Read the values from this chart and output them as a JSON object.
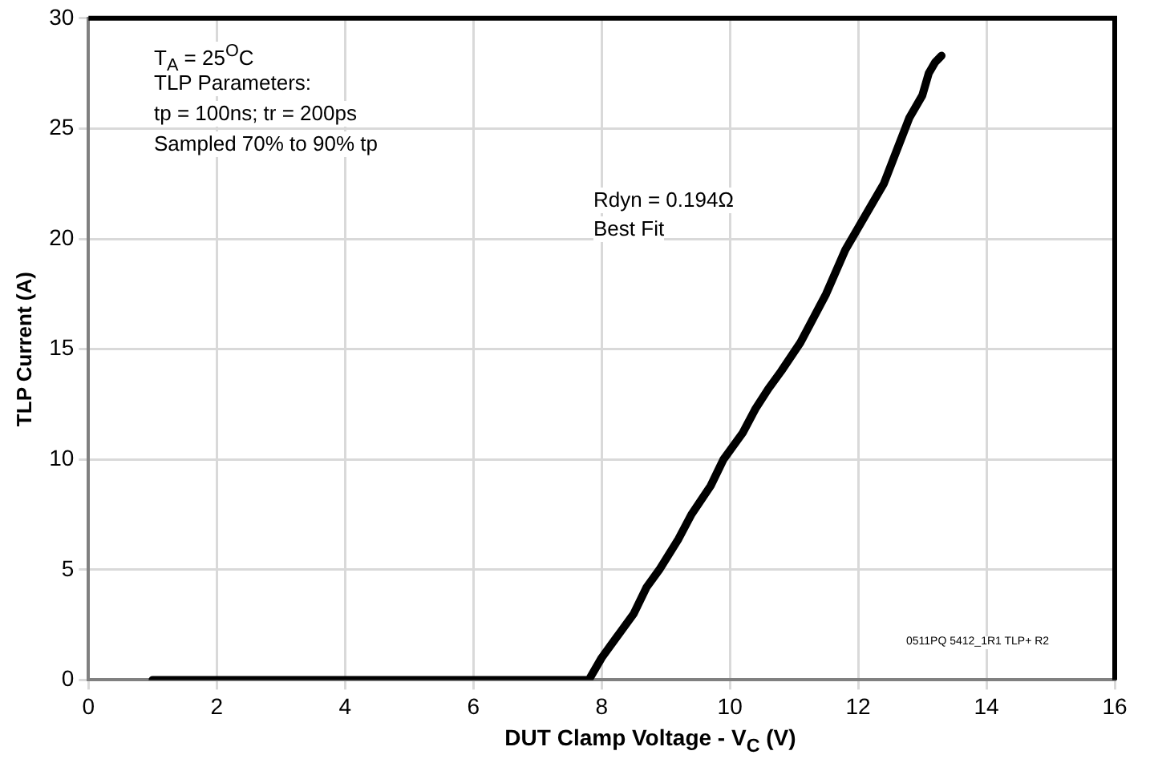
{
  "chart_data": {
    "type": "line",
    "xlabel": "DUT Clamp Voltage - V$_{C}$ (V)",
    "ylabel": "TLP Current (A)",
    "annotations": [
      "T$_{A}$ = 25$^{O}$C",
      "TLP  Parameters:",
      "tp = 100ns; tr = 200ps",
      "Sampled 70% to 90% tp",
      "Rdyn = 0.194Ω",
      "Best Fit",
      "0511PQ 5412_1R1 TLP+ R2"
    ],
    "series": [
      {
        "color": "#000000",
        "x": [
          1,
          7.8,
          8,
          8.3,
          8.5,
          8.7,
          8.9,
          9.2,
          9.4,
          9.7,
          9.9,
          10.2,
          10.4,
          10.6,
          10.8,
          11.1,
          11.3,
          11.5,
          11.8,
          12.1,
          12.4,
          12.6,
          12.8,
          13.0,
          13.1,
          13.2,
          13.3
        ],
        "values": [
          0,
          0,
          1,
          2.2,
          3,
          4.2,
          5,
          6.4,
          7.5,
          8.8,
          10,
          11.2,
          12.3,
          13.2,
          14,
          15.3,
          16.4,
          17.5,
          19.5,
          21,
          22.5,
          24,
          25.5,
          26.5,
          27.5,
          28,
          28.3
        ]
      }
    ],
    "xlim": [
      0,
      16
    ],
    "xticks": [
      0,
      2,
      4,
      6,
      8,
      10,
      12,
      14,
      16
    ],
    "ylim": [
      0,
      30
    ],
    "yticks": [
      0,
      5,
      10,
      15,
      20,
      25,
      30
    ],
    "grid": true,
    "legend": false,
    "marker": "none",
    "line_style": "solid"
  }
}
